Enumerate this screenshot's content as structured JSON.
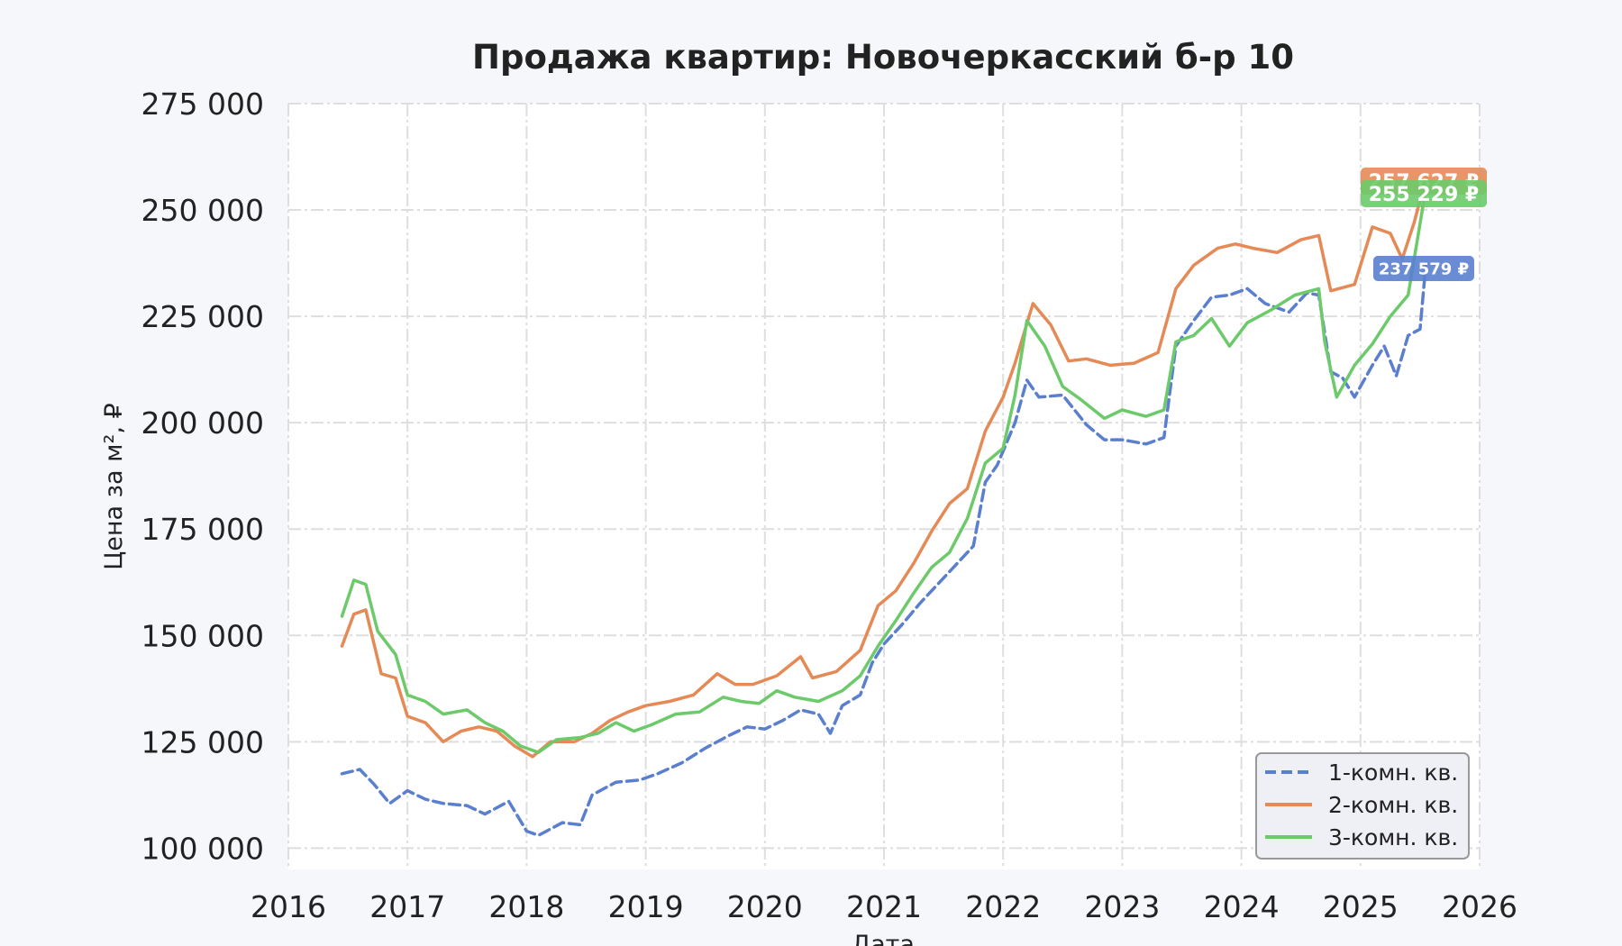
{
  "chart_data": {
    "type": "line",
    "title": "Продажа квартир: Новочеркасский б-р 10",
    "xlabel": "Дата",
    "ylabel": "Цена за м², ₽",
    "xlim": [
      2016,
      2026
    ],
    "ylim": [
      95000,
      275000
    ],
    "x_ticks": [
      "2016",
      "2017",
      "2018",
      "2019",
      "2020",
      "2021",
      "2022",
      "2023",
      "2024",
      "2025",
      "2026"
    ],
    "y_ticks": [
      "100 000",
      "125 000",
      "150 000",
      "175 000",
      "200 000",
      "225 000",
      "250 000",
      "275 000"
    ],
    "grid": true,
    "legend_position": "bottom-right",
    "series": [
      {
        "name": "1-комн. кв.",
        "color": "#5a7fcf",
        "dash": true,
        "last_label": "237 579 ₽",
        "points": [
          [
            2016.45,
            117500
          ],
          [
            2016.6,
            118500
          ],
          [
            2016.72,
            115000
          ],
          [
            2016.85,
            110500
          ],
          [
            2017.0,
            113500
          ],
          [
            2017.15,
            111500
          ],
          [
            2017.3,
            110500
          ],
          [
            2017.5,
            110000
          ],
          [
            2017.65,
            108000
          ],
          [
            2017.85,
            111000
          ],
          [
            2018.0,
            104000
          ],
          [
            2018.1,
            103000
          ],
          [
            2018.3,
            106000
          ],
          [
            2018.45,
            105500
          ],
          [
            2018.55,
            112500
          ],
          [
            2018.75,
            115500
          ],
          [
            2018.95,
            116000
          ],
          [
            2019.1,
            117500
          ],
          [
            2019.3,
            120000
          ],
          [
            2019.5,
            123500
          ],
          [
            2019.7,
            126500
          ],
          [
            2019.85,
            128500
          ],
          [
            2020.0,
            128000
          ],
          [
            2020.15,
            130000
          ],
          [
            2020.3,
            132500
          ],
          [
            2020.45,
            131500
          ],
          [
            2020.55,
            127000
          ],
          [
            2020.65,
            133500
          ],
          [
            2020.8,
            136000
          ],
          [
            2020.9,
            143500
          ],
          [
            2021.0,
            148000
          ],
          [
            2021.15,
            152500
          ],
          [
            2021.3,
            157500
          ],
          [
            2021.45,
            162000
          ],
          [
            2021.6,
            166500
          ],
          [
            2021.75,
            171000
          ],
          [
            2021.85,
            186000
          ],
          [
            2021.95,
            190000
          ],
          [
            2022.1,
            200000
          ],
          [
            2022.2,
            210000
          ],
          [
            2022.3,
            206000
          ],
          [
            2022.5,
            206500
          ],
          [
            2022.7,
            199500
          ],
          [
            2022.85,
            196000
          ],
          [
            2023.0,
            196000
          ],
          [
            2023.2,
            195000
          ],
          [
            2023.35,
            196500
          ],
          [
            2023.45,
            218000
          ],
          [
            2023.6,
            224000
          ],
          [
            2023.75,
            229500
          ],
          [
            2023.9,
            230000
          ],
          [
            2024.05,
            231500
          ],
          [
            2024.2,
            228000
          ],
          [
            2024.4,
            226000
          ],
          [
            2024.55,
            230500
          ],
          [
            2024.65,
            230000
          ],
          [
            2024.75,
            212000
          ],
          [
            2024.85,
            210500
          ],
          [
            2024.95,
            206000
          ],
          [
            2025.1,
            213500
          ],
          [
            2025.2,
            218000
          ],
          [
            2025.3,
            211000
          ],
          [
            2025.4,
            220500
          ],
          [
            2025.5,
            222000
          ],
          [
            2025.55,
            237579
          ]
        ]
      },
      {
        "name": "2-комн. кв.",
        "color": "#e58a56",
        "dash": false,
        "last_label": "257 627 ₽",
        "points": [
          [
            2016.45,
            147500
          ],
          [
            2016.55,
            155000
          ],
          [
            2016.65,
            156000
          ],
          [
            2016.78,
            141000
          ],
          [
            2016.9,
            140000
          ],
          [
            2017.0,
            131000
          ],
          [
            2017.15,
            129500
          ],
          [
            2017.3,
            125000
          ],
          [
            2017.45,
            127500
          ],
          [
            2017.6,
            128500
          ],
          [
            2017.75,
            127500
          ],
          [
            2017.9,
            124000
          ],
          [
            2018.05,
            121500
          ],
          [
            2018.2,
            125000
          ],
          [
            2018.4,
            125000
          ],
          [
            2018.55,
            127000
          ],
          [
            2018.7,
            130000
          ],
          [
            2018.85,
            132000
          ],
          [
            2019.0,
            133500
          ],
          [
            2019.2,
            134500
          ],
          [
            2019.4,
            136000
          ],
          [
            2019.6,
            141000
          ],
          [
            2019.75,
            138500
          ],
          [
            2019.9,
            138500
          ],
          [
            2020.1,
            140500
          ],
          [
            2020.3,
            145000
          ],
          [
            2020.4,
            140000
          ],
          [
            2020.6,
            141500
          ],
          [
            2020.8,
            146500
          ],
          [
            2020.95,
            157000
          ],
          [
            2021.1,
            160500
          ],
          [
            2021.25,
            167000
          ],
          [
            2021.4,
            174500
          ],
          [
            2021.55,
            181000
          ],
          [
            2021.7,
            184500
          ],
          [
            2021.85,
            198000
          ],
          [
            2022.0,
            206000
          ],
          [
            2022.1,
            214000
          ],
          [
            2022.25,
            228000
          ],
          [
            2022.4,
            223000
          ],
          [
            2022.55,
            214500
          ],
          [
            2022.7,
            215000
          ],
          [
            2022.9,
            213500
          ],
          [
            2023.1,
            214000
          ],
          [
            2023.3,
            216500
          ],
          [
            2023.45,
            231500
          ],
          [
            2023.6,
            237000
          ],
          [
            2023.8,
            241000
          ],
          [
            2023.95,
            242000
          ],
          [
            2024.1,
            241000
          ],
          [
            2024.3,
            240000
          ],
          [
            2024.5,
            243000
          ],
          [
            2024.65,
            244000
          ],
          [
            2024.75,
            231000
          ],
          [
            2024.95,
            232500
          ],
          [
            2025.1,
            246000
          ],
          [
            2025.25,
            244500
          ],
          [
            2025.35,
            238500
          ],
          [
            2025.45,
            247000
          ],
          [
            2025.55,
            257627
          ]
        ]
      },
      {
        "name": "3-комн. кв.",
        "color": "#6cca6a",
        "dash": false,
        "last_label": "255 229 ₽",
        "points": [
          [
            2016.45,
            154500
          ],
          [
            2016.55,
            163000
          ],
          [
            2016.65,
            162000
          ],
          [
            2016.75,
            151000
          ],
          [
            2016.9,
            145500
          ],
          [
            2017.0,
            136000
          ],
          [
            2017.15,
            134500
          ],
          [
            2017.3,
            131500
          ],
          [
            2017.5,
            132500
          ],
          [
            2017.65,
            129500
          ],
          [
            2017.8,
            127500
          ],
          [
            2017.95,
            124000
          ],
          [
            2018.1,
            122500
          ],
          [
            2018.25,
            125500
          ],
          [
            2018.45,
            126000
          ],
          [
            2018.6,
            127000
          ],
          [
            2018.75,
            129500
          ],
          [
            2018.9,
            127500
          ],
          [
            2019.05,
            129000
          ],
          [
            2019.25,
            131500
          ],
          [
            2019.45,
            132000
          ],
          [
            2019.65,
            135500
          ],
          [
            2019.8,
            134500
          ],
          [
            2019.95,
            134000
          ],
          [
            2020.1,
            137000
          ],
          [
            2020.25,
            135500
          ],
          [
            2020.45,
            134500
          ],
          [
            2020.65,
            137000
          ],
          [
            2020.8,
            140500
          ],
          [
            2020.95,
            147500
          ],
          [
            2021.1,
            153500
          ],
          [
            2021.25,
            160000
          ],
          [
            2021.4,
            166000
          ],
          [
            2021.55,
            169500
          ],
          [
            2021.7,
            177500
          ],
          [
            2021.85,
            190500
          ],
          [
            2022.0,
            194000
          ],
          [
            2022.1,
            206500
          ],
          [
            2022.2,
            224000
          ],
          [
            2022.35,
            218000
          ],
          [
            2022.5,
            208500
          ],
          [
            2022.65,
            205500
          ],
          [
            2022.85,
            201000
          ],
          [
            2023.0,
            203000
          ],
          [
            2023.2,
            201500
          ],
          [
            2023.35,
            203000
          ],
          [
            2023.45,
            219000
          ],
          [
            2023.6,
            220500
          ],
          [
            2023.75,
            224500
          ],
          [
            2023.9,
            218000
          ],
          [
            2024.05,
            223500
          ],
          [
            2024.25,
            226500
          ],
          [
            2024.45,
            230000
          ],
          [
            2024.65,
            231500
          ],
          [
            2024.7,
            219000
          ],
          [
            2024.8,
            206000
          ],
          [
            2024.95,
            213500
          ],
          [
            2025.1,
            218500
          ],
          [
            2025.25,
            225000
          ],
          [
            2025.4,
            230000
          ],
          [
            2025.55,
            255229
          ]
        ]
      }
    ]
  }
}
